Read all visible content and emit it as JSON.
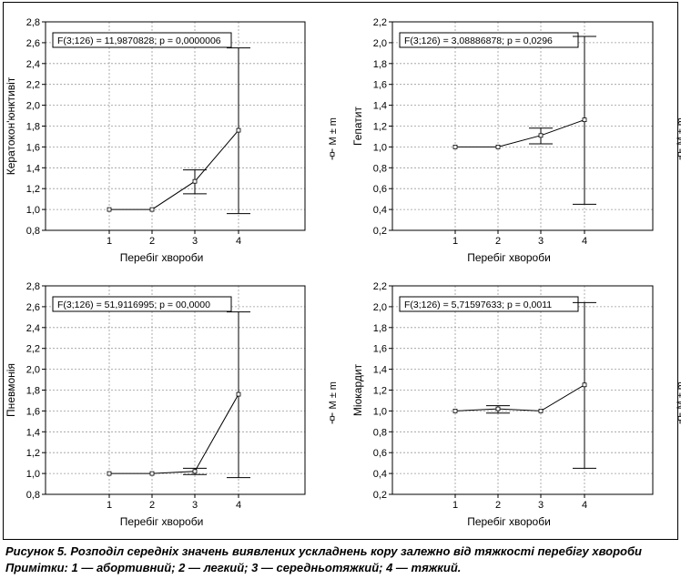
{
  "chart_data": [
    {
      "type": "line",
      "ylabel": "Кератокон'юнктивіт",
      "xlabel": "Перебіг хвороби",
      "stat_label": "F(3;126) = 11,9870828; p = 0,0000006",
      "legend_label": "M ± m",
      "x": [
        "1",
        "2",
        "3",
        "4"
      ],
      "ylim": [
        0.8,
        2.8
      ],
      "yticks": [
        "0,8",
        "1,0",
        "1,2",
        "1,4",
        "1,6",
        "1,8",
        "2,0",
        "2,2",
        "2,4",
        "2,6",
        "2,8"
      ],
      "mean": [
        1.0,
        1.0,
        1.27,
        1.76
      ],
      "lower": [
        1.0,
        1.0,
        1.15,
        0.96
      ],
      "upper": [
        1.0,
        1.0,
        1.38,
        2.55
      ]
    },
    {
      "type": "line",
      "ylabel": "Гепатит",
      "xlabel": "Перебіг хвороби",
      "stat_label": "F(3;126) = 3,08886878; p = 0,0296",
      "legend_label": "M ± m",
      "x": [
        "1",
        "2",
        "3",
        "4"
      ],
      "ylim": [
        0.2,
        2.2
      ],
      "yticks": [
        "0,2",
        "0,4",
        "0,6",
        "0,8",
        "1,0",
        "1,2",
        "1,4",
        "1,6",
        "1,8",
        "2,0",
        "2,2"
      ],
      "mean": [
        1.0,
        1.0,
        1.11,
        1.26
      ],
      "lower": [
        1.0,
        1.0,
        1.03,
        0.45
      ],
      "upper": [
        1.0,
        1.0,
        1.18,
        2.06
      ]
    },
    {
      "type": "line",
      "ylabel": "Пневмонія",
      "xlabel": "Перебіг хвороби",
      "stat_label": "F(3;126) = 51,9116995; p = 00,0000",
      "legend_label": "M ± m",
      "x": [
        "1",
        "2",
        "3",
        "4"
      ],
      "ylim": [
        0.8,
        2.8
      ],
      "yticks": [
        "0,8",
        "1,0",
        "1,2",
        "1,4",
        "1,6",
        "1,8",
        "2,0",
        "2,2",
        "2,4",
        "2,6",
        "2,8"
      ],
      "mean": [
        1.0,
        1.0,
        1.02,
        1.76
      ],
      "lower": [
        1.0,
        1.0,
        0.99,
        0.96
      ],
      "upper": [
        1.0,
        1.0,
        1.05,
        2.55
      ]
    },
    {
      "type": "line",
      "ylabel": "Міокардит",
      "xlabel": "Перебіг хвороби",
      "stat_label": "F(3;126) = 5,71597633; p = 0,0011",
      "legend_label": "M ± m",
      "x": [
        "1",
        "2",
        "3",
        "4"
      ],
      "ylim": [
        0.2,
        2.2
      ],
      "yticks": [
        "0,2",
        "0,4",
        "0,6",
        "0,8",
        "1,0",
        "1,2",
        "1,4",
        "1,6",
        "1,8",
        "2,0",
        "2,2"
      ],
      "mean": [
        1.0,
        1.02,
        1.0,
        1.25
      ],
      "lower": [
        1.0,
        0.98,
        1.0,
        0.45
      ],
      "upper": [
        1.0,
        1.05,
        1.0,
        2.04
      ]
    }
  ],
  "caption": {
    "line1": "Рисунок 5.  Розподіл середніх значень виявлених ускладнень кору залежно від тяжкості перебігу хвороби",
    "line2": "Примітки: 1 — абортивний; 2 — легкий; 3 — середньотяжкий; 4 — тяжкий."
  },
  "colors": {
    "line": "#000000",
    "grid": "#9a9a9a",
    "frame": "#000000"
  }
}
